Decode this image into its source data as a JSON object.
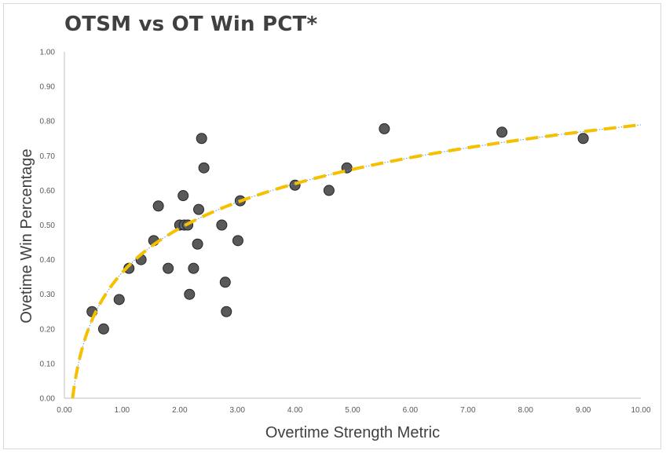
{
  "chart_data": {
    "type": "scatter",
    "title": "OTSM vs OT Win PCT*",
    "xlabel": "Overtime Strength Metric",
    "ylabel": "Ovetime Win Percentage",
    "xlim": [
      0,
      10
    ],
    "ylim": [
      0,
      1
    ],
    "x_ticks": [
      "0.00",
      "1.00",
      "2.00",
      "3.00",
      "4.00",
      "5.00",
      "6.00",
      "7.00",
      "8.00",
      "9.00",
      "10.00"
    ],
    "y_ticks": [
      "0.00",
      "0.10",
      "0.20",
      "0.30",
      "0.40",
      "0.50",
      "0.60",
      "0.70",
      "0.80",
      "0.90",
      "1.00"
    ],
    "grid": false,
    "series": [
      {
        "marker_color": "#595959",
        "points": [
          {
            "x": 0.48,
            "y": 0.25
          },
          {
            "x": 0.68,
            "y": 0.2
          },
          {
            "x": 0.95,
            "y": 0.285
          },
          {
            "x": 1.12,
            "y": 0.375
          },
          {
            "x": 1.33,
            "y": 0.4
          },
          {
            "x": 1.55,
            "y": 0.455
          },
          {
            "x": 1.63,
            "y": 0.555
          },
          {
            "x": 1.8,
            "y": 0.375
          },
          {
            "x": 2.0,
            "y": 0.5
          },
          {
            "x": 2.06,
            "y": 0.585
          },
          {
            "x": 2.08,
            "y": 0.5
          },
          {
            "x": 2.14,
            "y": 0.5
          },
          {
            "x": 2.17,
            "y": 0.3
          },
          {
            "x": 2.24,
            "y": 0.375
          },
          {
            "x": 2.31,
            "y": 0.445
          },
          {
            "x": 2.33,
            "y": 0.545
          },
          {
            "x": 2.38,
            "y": 0.75
          },
          {
            "x": 2.42,
            "y": 0.665
          },
          {
            "x": 2.73,
            "y": 0.5
          },
          {
            "x": 2.79,
            "y": 0.335
          },
          {
            "x": 2.81,
            "y": 0.25
          },
          {
            "x": 3.01,
            "y": 0.455
          },
          {
            "x": 3.05,
            "y": 0.57
          },
          {
            "x": 4.0,
            "y": 0.615
          },
          {
            "x": 4.59,
            "y": 0.6
          },
          {
            "x": 4.9,
            "y": 0.665
          },
          {
            "x": 5.55,
            "y": 0.778
          },
          {
            "x": 7.59,
            "y": 0.768
          },
          {
            "x": 9.0,
            "y": 0.75
          }
        ]
      }
    ],
    "trendline": {
      "type": "logarithmic",
      "a": 0.1855,
      "b": 0.3622,
      "color": "#f5c000",
      "style": "dashed"
    }
  }
}
